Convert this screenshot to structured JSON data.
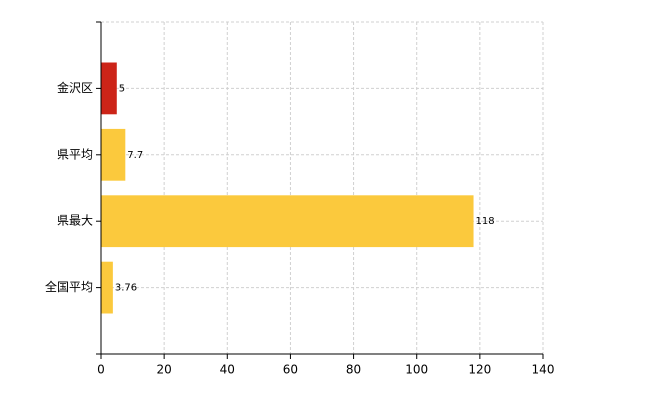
{
  "chart_data": {
    "type": "bar",
    "orientation": "horizontal",
    "categories": [
      "金沢区",
      "県平均",
      "県最大",
      "全国平均"
    ],
    "values": [
      5,
      7.7,
      118,
      3.76
    ],
    "colors": [
      "#cc2418",
      "#fbc93d",
      "#fbc93d",
      "#fbc93d"
    ],
    "xlim": [
      0,
      140
    ],
    "xticks": [
      0,
      20,
      40,
      60,
      80,
      100,
      120,
      140
    ],
    "grid": true
  }
}
